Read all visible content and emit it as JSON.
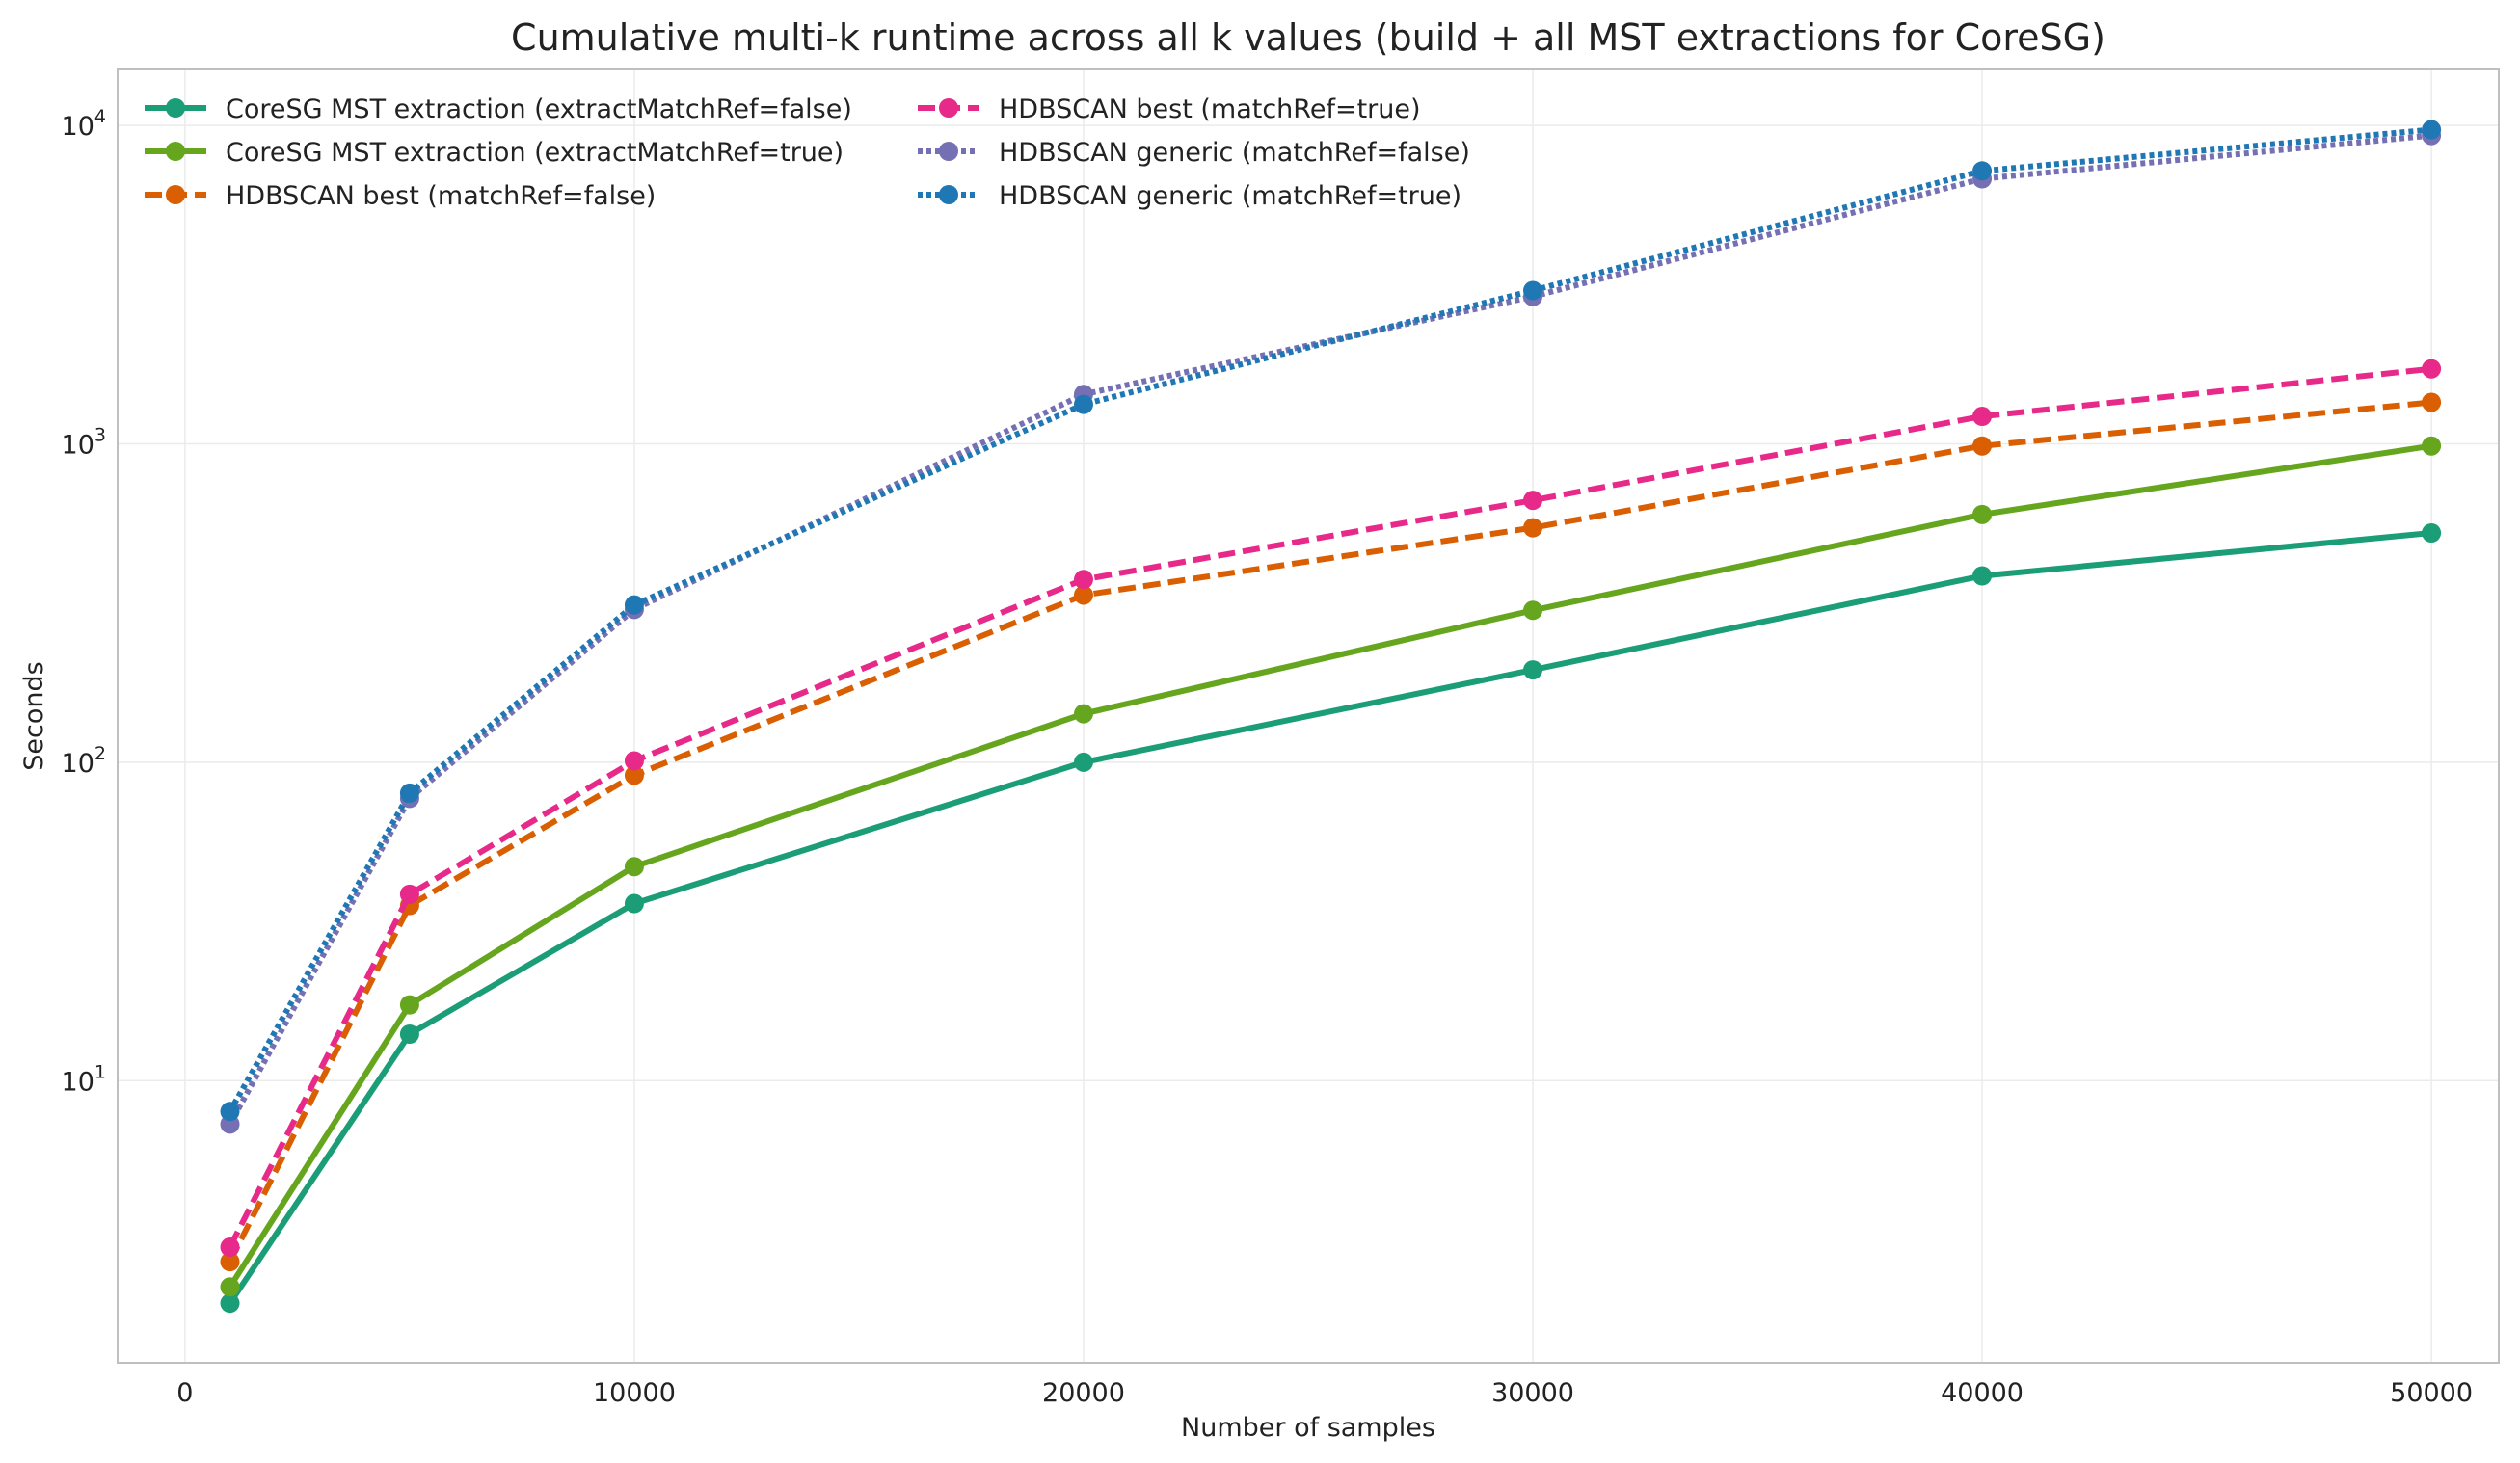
{
  "chart_data": {
    "type": "line",
    "title": "Cumulative multi-k runtime across all k values (build + all MST extractions for CoreSG)",
    "xlabel": "Number of samples",
    "ylabel": "Seconds",
    "x_scale": "linear",
    "y_scale": "log",
    "xlim": [
      -1500,
      51500
    ],
    "ylim": [
      1.3,
      15000
    ],
    "x_ticks": [
      0,
      10000,
      20000,
      30000,
      40000,
      50000
    ],
    "y_ticks": [
      {
        "base": "10",
        "exp": "1",
        "value": 10
      },
      {
        "base": "10",
        "exp": "2",
        "value": 100
      },
      {
        "base": "10",
        "exp": "3",
        "value": 1000
      },
      {
        "base": "10",
        "exp": "4",
        "value": 10000
      }
    ],
    "grid": true,
    "legend_position": "top-left",
    "x": [
      1000,
      5000,
      10000,
      20000,
      30000,
      40000,
      50000
    ],
    "series": [
      {
        "name": "CoreSG MST extraction (extractMatchRef=false)",
        "color": "#1b9e77",
        "dash": "solid",
        "values": [
          2.0,
          14,
          36,
          100,
          195,
          385,
          525
        ]
      },
      {
        "name": "CoreSG MST extraction (extractMatchRef=true)",
        "color": "#66a61e",
        "dash": "solid",
        "values": [
          2.25,
          17.3,
          47,
          142,
          300,
          600,
          985
        ]
      },
      {
        "name": "HDBSCAN best (matchRef=false)",
        "color": "#d95f02",
        "dash": "dashed",
        "values": [
          2.7,
          35.5,
          91,
          335,
          545,
          985,
          1350
        ]
      },
      {
        "name": "HDBSCAN best (matchRef=true)",
        "color": "#e7298a",
        "dash": "dashed",
        "values": [
          3.0,
          38.5,
          101,
          375,
          665,
          1220,
          1720
        ]
      },
      {
        "name": "HDBSCAN generic (matchRef=false)",
        "color": "#7570b3",
        "dash": "dotted",
        "values": [
          7.3,
          77,
          302,
          1430,
          2900,
          6800,
          9300
        ]
      },
      {
        "name": "HDBSCAN generic (matchRef=true)",
        "color": "#1f77b4",
        "dash": "dotted",
        "values": [
          8.0,
          80,
          312,
          1330,
          3030,
          7200,
          9700
        ]
      }
    ]
  }
}
